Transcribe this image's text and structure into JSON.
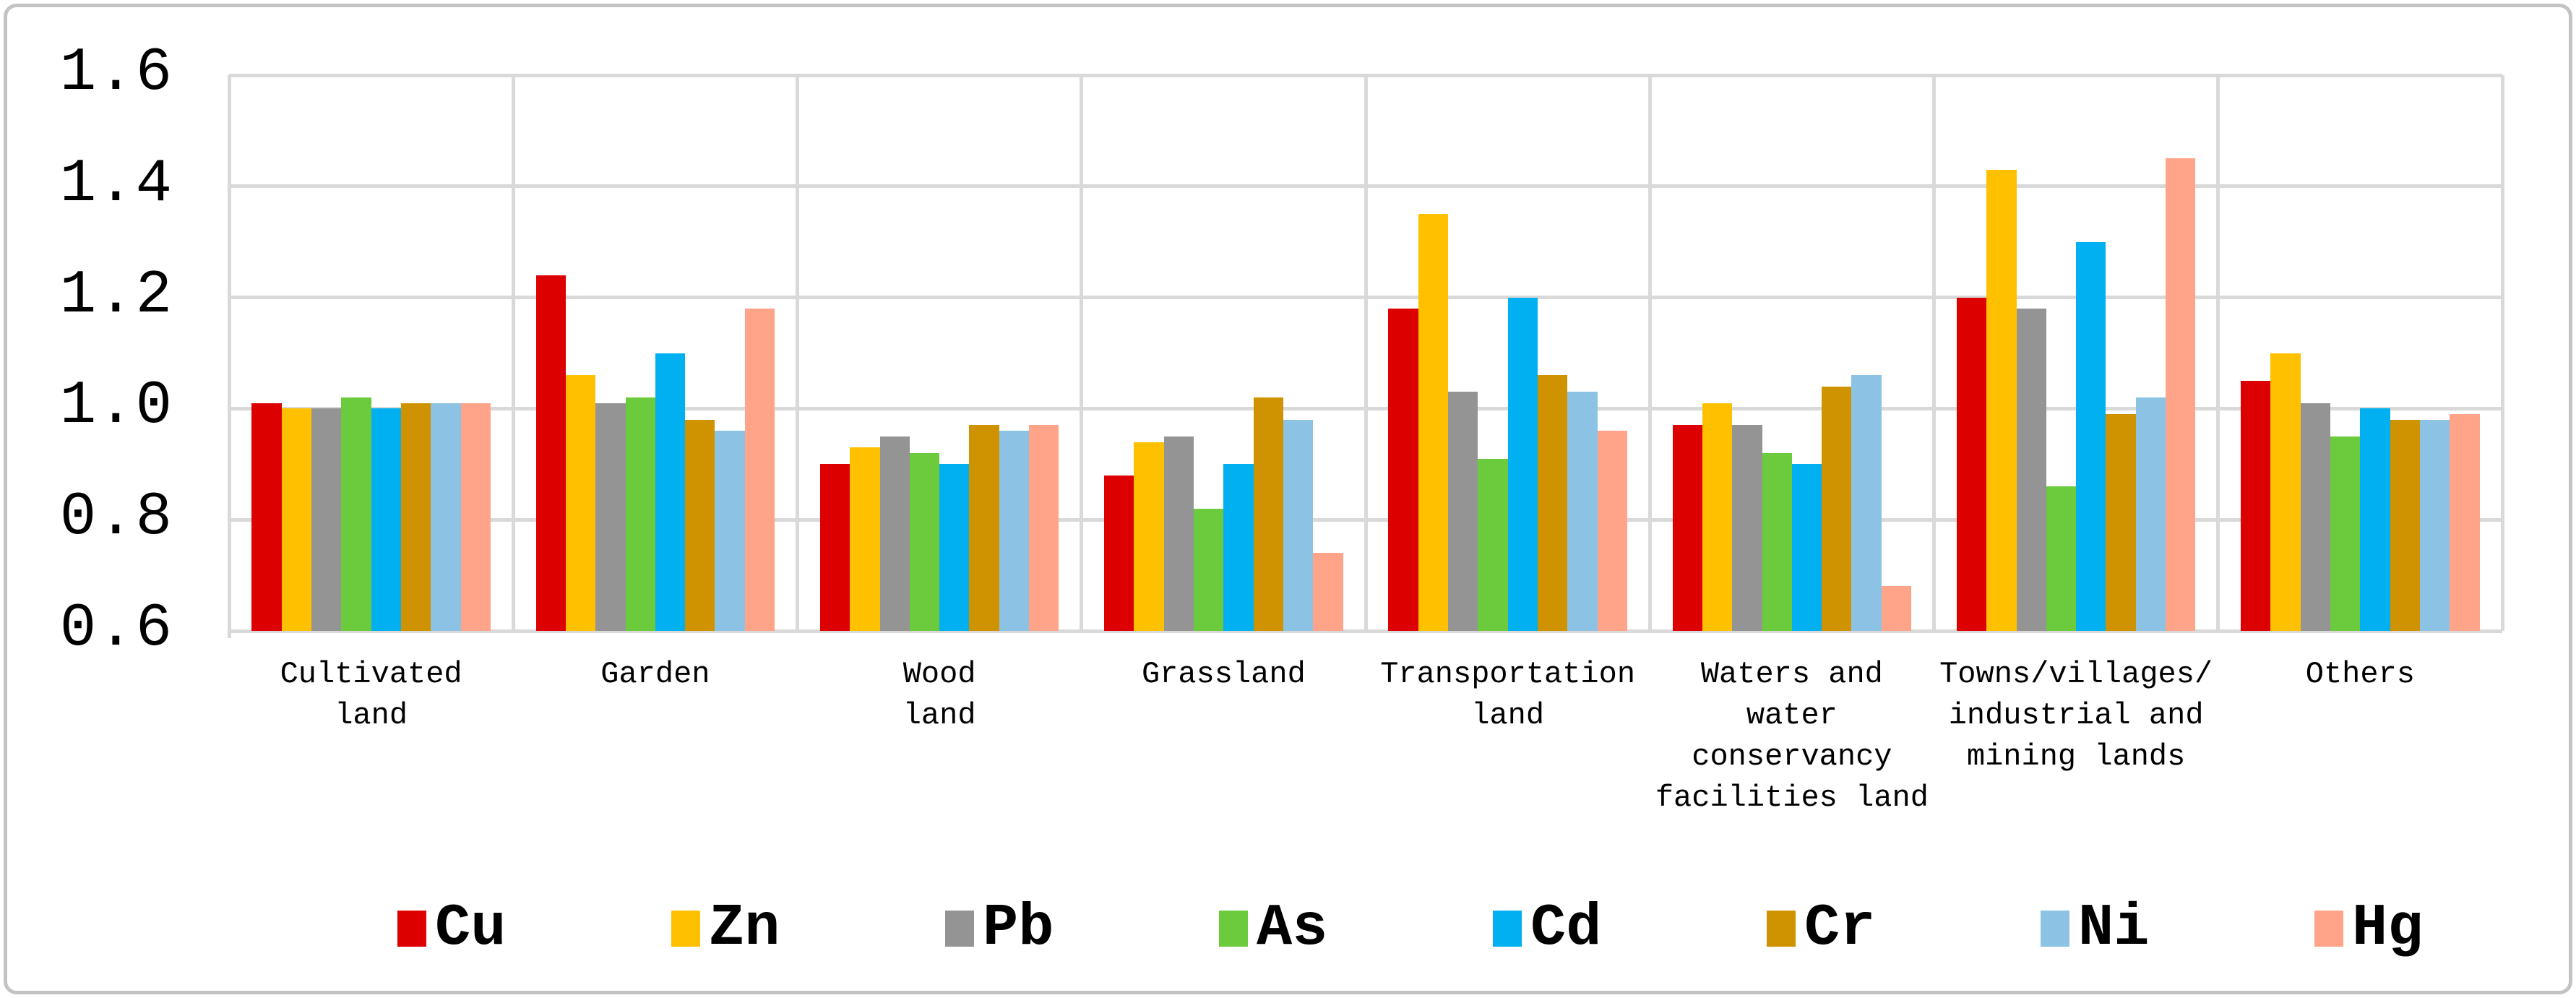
{
  "chart_data": {
    "type": "bar",
    "title": "",
    "xlabel": "",
    "ylabel": "",
    "ylim": [
      0.6,
      1.6
    ],
    "ytick_step": 0.2,
    "ytick_labels": [
      "1.6",
      "1.4",
      "1.2",
      "1.0",
      "0.8",
      "0.6"
    ],
    "grid": "horizontal and vertical category separators, light gray",
    "legend_position": "bottom",
    "categories": [
      "Cultivated land",
      "Garden",
      "Wood land",
      "Grassland",
      "Transportation land",
      "Waters and water conservancy facilities land",
      "Towns/villages/ industrial and mining lands",
      "Others"
    ],
    "category_display_lines": [
      [
        "Cultivated",
        "land"
      ],
      [
        "Garden"
      ],
      [
        "Wood",
        "land"
      ],
      [
        "Grassland"
      ],
      [
        "Transportation",
        "land"
      ],
      [
        "Waters and",
        "water",
        "conservancy",
        "facilities land"
      ],
      [
        "Towns/villages/",
        "industrial and",
        "mining lands"
      ],
      [
        "Others"
      ]
    ],
    "series": [
      {
        "name": "Cu",
        "color": "#dd0000",
        "values": [
          1.01,
          1.24,
          0.9,
          0.88,
          1.18,
          0.97,
          1.2,
          1.05
        ]
      },
      {
        "name": "Zn",
        "color": "#ffc000",
        "values": [
          1.0,
          1.06,
          0.93,
          0.94,
          1.35,
          1.01,
          1.43,
          1.1
        ]
      },
      {
        "name": "Pb",
        "color": "#949494",
        "values": [
          1.0,
          1.01,
          0.95,
          0.95,
          1.03,
          0.97,
          1.18,
          1.01
        ]
      },
      {
        "name": "As",
        "color": "#6ccb3c",
        "values": [
          1.02,
          1.02,
          0.92,
          0.82,
          0.91,
          0.92,
          0.86,
          0.95
        ]
      },
      {
        "name": "Cd",
        "color": "#00b0f0",
        "values": [
          1.0,
          1.1,
          0.9,
          0.9,
          1.2,
          0.9,
          1.3,
          1.0
        ]
      },
      {
        "name": "Cr",
        "color": "#cf9200",
        "values": [
          1.01,
          0.98,
          0.97,
          1.02,
          1.06,
          1.04,
          0.99,
          0.98
        ]
      },
      {
        "name": "Ni",
        "color": "#8cc3e5",
        "values": [
          1.01,
          0.96,
          0.96,
          0.98,
          1.03,
          1.06,
          1.02,
          0.98
        ]
      },
      {
        "name": "Hg",
        "color": "#ffa488",
        "values": [
          1.01,
          1.18,
          0.97,
          0.74,
          0.96,
          0.68,
          1.45,
          0.99
        ]
      }
    ],
    "colors": {
      "gridline": "#d9d9d9",
      "figure_border": "#c3c3c3",
      "background": "#ffffff",
      "text": "#000000"
    }
  }
}
